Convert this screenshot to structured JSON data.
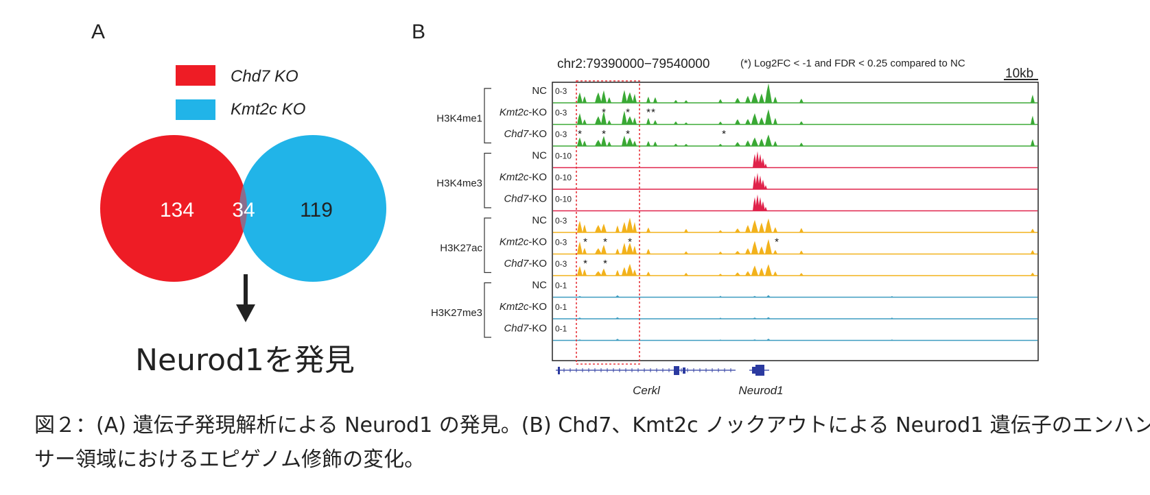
{
  "panel_a": {
    "label": "A",
    "legend": [
      {
        "name": "Chd7 KO",
        "color": "#ee1c25"
      },
      {
        "name": "Kmt2c KO",
        "color": "#21b4e8"
      }
    ],
    "venn": {
      "left_only": "134",
      "overlap": "34",
      "right_only": "119",
      "left_color": "#ee1c25",
      "right_color": "#21b4e8",
      "overlap_color": "#8c6d8c"
    },
    "result": "Neurod1を発見"
  },
  "panel_b": {
    "label": "B",
    "locus": "chr2:79390000−79540000",
    "note": "(*) Log2FC < -1 and FDR < 0.25 compared to NC",
    "scale_bar": "10kb",
    "groups": [
      {
        "mark": "H3K4me1",
        "color": "#3aa935",
        "tracks": [
          {
            "sample": "NC",
            "range": "0-3"
          },
          {
            "sample": "Kmt2c-KO",
            "gene": "Kmt2c",
            "suffix": "-KO",
            "range": "0-3"
          },
          {
            "sample": "Chd7-KO",
            "gene": "Chd7",
            "suffix": "-KO",
            "range": "0-3"
          }
        ]
      },
      {
        "mark": "H3K4me3",
        "color": "#e0224a",
        "tracks": [
          {
            "sample": "NC",
            "range": "0-10"
          },
          {
            "sample": "Kmt2c-KO",
            "gene": "Kmt2c",
            "suffix": "-KO",
            "range": "0-10"
          },
          {
            "sample": "Chd7-KO",
            "gene": "Chd7",
            "suffix": "-KO",
            "range": "0-10"
          }
        ]
      },
      {
        "mark": "H3K27ac",
        "color": "#f2b21c",
        "tracks": [
          {
            "sample": "NC",
            "range": "0-3"
          },
          {
            "sample": "Kmt2c-KO",
            "gene": "Kmt2c",
            "suffix": "-KO",
            "range": "0-3"
          },
          {
            "sample": "Chd7-KO",
            "gene": "Chd7",
            "suffix": "-KO",
            "range": "0-3"
          }
        ]
      },
      {
        "mark": "H3K27me3",
        "color": "#3c9cc0",
        "tracks": [
          {
            "sample": "NC",
            "range": "0-1"
          },
          {
            "sample": "Kmt2c-KO",
            "gene": "Kmt2c",
            "suffix": "-KO",
            "range": "0-1"
          },
          {
            "sample": "Chd7-KO",
            "gene": "Chd7",
            "suffix": "-KO",
            "range": "0-1"
          }
        ]
      }
    ],
    "genes": [
      "Cerkl",
      "Neurod1"
    ],
    "gene_color": "#2b3aa0",
    "highlight_color": "#e8333a"
  },
  "caption": {
    "line1": "図２：(A) 遺伝子発現解析による Neurod1 の発見。(B) Chd7、Kmt2c ノックアウトによる Neurod1 遺伝子のエンハン",
    "line2": "サー領域におけるエピゲノム修飾の変化。"
  }
}
